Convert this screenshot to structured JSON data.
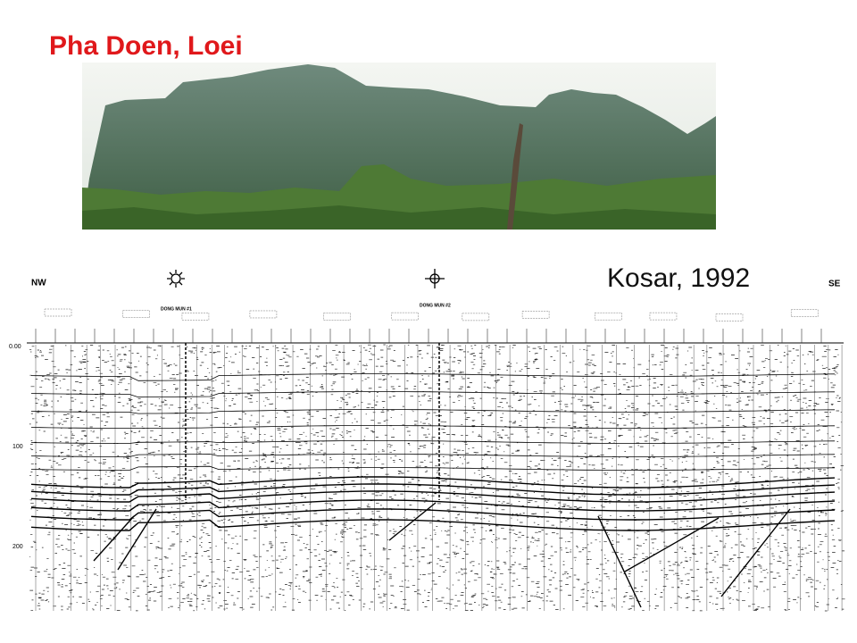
{
  "slide": {
    "title": "Pha Doen, Loei",
    "citation": "Kosar, 1992",
    "section": {
      "left_label": "NW",
      "right_label": "SE",
      "wells": [
        "DONG MUN #1",
        "DONG MUN #2"
      ],
      "time_labels": [
        "0.00",
        "100",
        "200"
      ]
    }
  }
}
